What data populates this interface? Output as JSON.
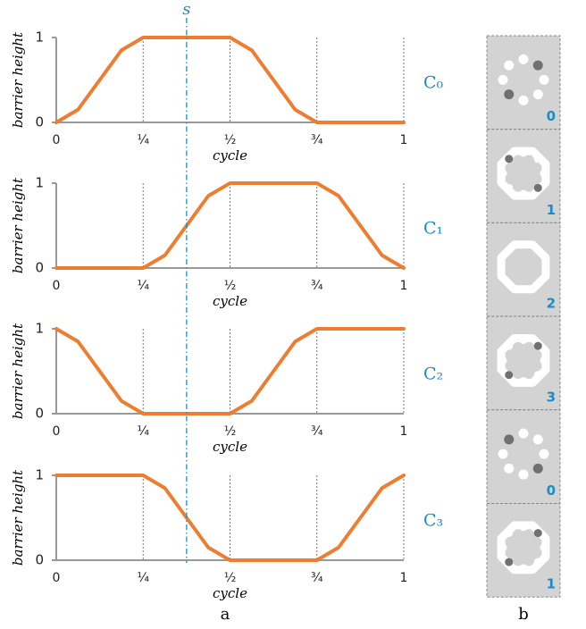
{
  "chart_data": [
    {
      "type": "line",
      "side_label": "C₀",
      "ylabel": "barrier height",
      "xlabel": "cycle",
      "x": [
        0,
        0.0625,
        0.125,
        0.1875,
        0.25,
        0.3125,
        0.375,
        0.4375,
        0.5,
        0.5625,
        0.625,
        0.6875,
        0.75,
        0.8125,
        0.875,
        0.9375,
        1
      ],
      "series": [
        {
          "color": "#ed7d31",
          "values": [
            0,
            0.15,
            0.5,
            0.85,
            1,
            1,
            1,
            1,
            1,
            0.85,
            0.5,
            0.15,
            0,
            0,
            0,
            0,
            0
          ]
        }
      ],
      "xlim": [
        0,
        1
      ],
      "ylim": [
        0,
        1
      ],
      "yticks": [
        0,
        1
      ],
      "xticks": [
        0,
        {
          "value": 0.25,
          "label": "¼"
        },
        {
          "value": 0.5,
          "label": "½"
        },
        {
          "value": 0.75,
          "label": "¾"
        },
        1
      ],
      "grid": true
    },
    {
      "type": "line",
      "side_label": "C₁",
      "ylabel": "barrier height",
      "xlabel": "cycle",
      "x": [
        0,
        0.0625,
        0.125,
        0.1875,
        0.25,
        0.3125,
        0.375,
        0.4375,
        0.5,
        0.5625,
        0.625,
        0.6875,
        0.75,
        0.8125,
        0.875,
        0.9375,
        1
      ],
      "series": [
        {
          "color": "#ed7d31",
          "values": [
            0,
            0,
            0,
            0,
            0,
            0.15,
            0.5,
            0.85,
            1,
            1,
            1,
            1,
            1,
            0.85,
            0.5,
            0.15,
            0
          ]
        }
      ],
      "xlim": [
        0,
        1
      ],
      "ylim": [
        0,
        1
      ],
      "yticks": [
        0,
        1
      ],
      "xticks": [
        0,
        {
          "value": 0.25,
          "label": "¼"
        },
        {
          "value": 0.5,
          "label": "½"
        },
        {
          "value": 0.75,
          "label": "¾"
        },
        1
      ],
      "grid": true
    },
    {
      "type": "line",
      "side_label": "C₂",
      "ylabel": "barrier height",
      "xlabel": "cycle",
      "x": [
        0,
        0.0625,
        0.125,
        0.1875,
        0.25,
        0.3125,
        0.375,
        0.4375,
        0.5,
        0.5625,
        0.625,
        0.6875,
        0.75,
        0.8125,
        0.875,
        0.9375,
        1
      ],
      "series": [
        {
          "color": "#ed7d31",
          "values": [
            1,
            0.85,
            0.5,
            0.15,
            0,
            0,
            0,
            0,
            0,
            0.15,
            0.5,
            0.85,
            1,
            1,
            1,
            1,
            1
          ]
        }
      ],
      "xlim": [
        0,
        1
      ],
      "ylim": [
        0,
        1
      ],
      "yticks": [
        0,
        1
      ],
      "xticks": [
        0,
        {
          "value": 0.25,
          "label": "¼"
        },
        {
          "value": 0.5,
          "label": "½"
        },
        {
          "value": 0.75,
          "label": "¾"
        },
        1
      ],
      "grid": true
    },
    {
      "type": "line",
      "side_label": "C₃",
      "ylabel": "barrier height",
      "xlabel": "cycle",
      "x": [
        0,
        0.0625,
        0.125,
        0.1875,
        0.25,
        0.3125,
        0.375,
        0.4375,
        0.5,
        0.5625,
        0.625,
        0.6875,
        0.75,
        0.8125,
        0.875,
        0.9375,
        1
      ],
      "series": [
        {
          "color": "#ed7d31",
          "values": [
            1,
            1,
            1,
            1,
            1,
            0.85,
            0.5,
            0.15,
            0,
            0,
            0,
            0,
            0,
            0.15,
            0.5,
            0.85,
            1
          ]
        }
      ],
      "xlim": [
        0,
        1
      ],
      "ylim": [
        0,
        1
      ],
      "yticks": [
        0,
        1
      ],
      "xticks": [
        0,
        {
          "value": 0.25,
          "label": "¼"
        },
        {
          "value": 0.5,
          "label": "½"
        },
        {
          "value": 0.75,
          "label": "¾"
        },
        1
      ],
      "grid": true
    }
  ],
  "marker": {
    "label": "s",
    "x": 0.375,
    "color": "#1f8bc4"
  },
  "panel_labels": [
    "a",
    "b"
  ],
  "frames": [
    "0",
    "1",
    "2",
    "3",
    "0",
    "1"
  ]
}
